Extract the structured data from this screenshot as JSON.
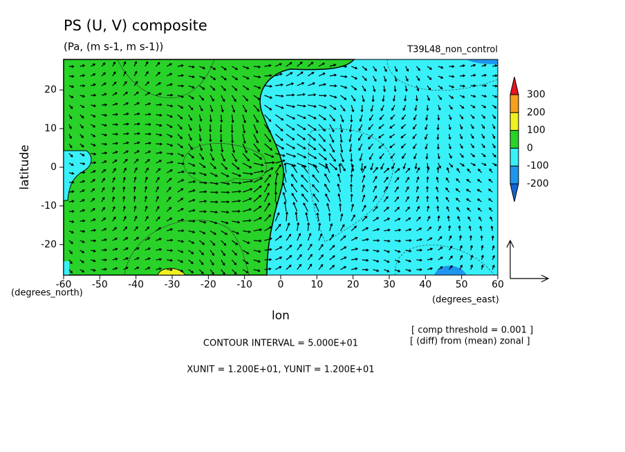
{
  "chart_data": {
    "type": "contour",
    "title": "PS (U, V) composite",
    "subtitle": "(Pa, (m s-1, m s-1))",
    "run_label": "T39L48_non_control",
    "xlabel": "lon",
    "ylabel": "latitude",
    "x_unit_label": "(degrees_east)",
    "y_unit_label": "(degrees_north)",
    "xlim": [
      -60,
      60
    ],
    "xticks": [
      -60,
      -50,
      -40,
      -30,
      -20,
      -10,
      0,
      10,
      20,
      30,
      40,
      50,
      60
    ],
    "ylim": [
      -27.9,
      27.9
    ],
    "yticks": [
      -20,
      -10,
      0,
      10,
      20
    ],
    "colorbar": {
      "levels": [
        -200,
        -100,
        0,
        100,
        200,
        300
      ],
      "colors": [
        "#1464d2",
        "#1e96f0",
        "#38f0f8",
        "#28d228",
        "#f0f020",
        "#f7a01c",
        "#e8141e"
      ]
    },
    "annotations": [
      "[ comp threshold = 0.001 ]",
      "[ (diff) from (mean) zonal ]",
      "CONTOUR INTERVAL = 5.000E+01",
      "XUNIT = 1.200E+01, YUNIT = 1.200E+01"
    ]
  }
}
